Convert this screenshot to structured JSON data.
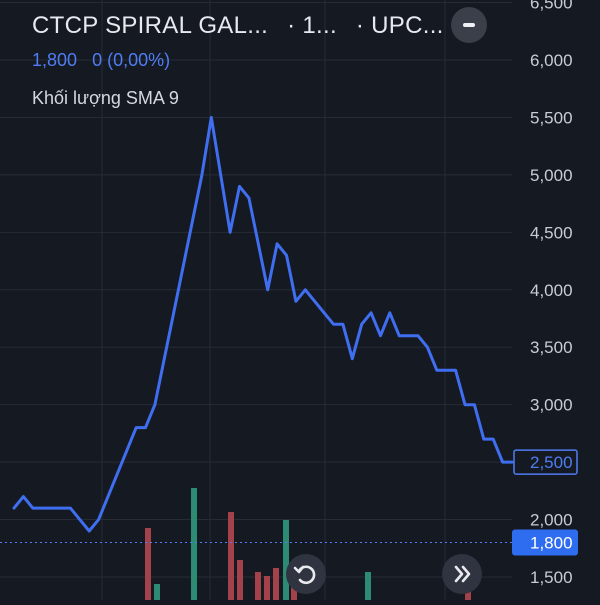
{
  "header": {
    "symbol_name": "CTCP SPIRAL GAL...",
    "interval": "· 1...",
    "exchange": "· UPC..."
  },
  "price": {
    "last": "1,800",
    "change": "0 (0,00%)"
  },
  "indicator": {
    "label": "Khối lượng SMA 9"
  },
  "controls": {
    "minimize_icon": "minus-icon",
    "reset_icon": "reset-icon",
    "scroll_latest_icon": "double-chevron-right-icon"
  },
  "colors": {
    "background": "#151922",
    "line": "#3f6ff0",
    "accent": "#4f7df3",
    "volume_up": "#2e8b73",
    "volume_down": "#a4424c",
    "grid": "#262b36"
  },
  "chart_data": {
    "type": "line",
    "series": [
      {
        "values": [
          2100,
          2200,
          2100,
          2100,
          2100,
          2100,
          2100,
          2000,
          1900,
          2000,
          2200,
          2400,
          2600,
          2800,
          2800,
          3000,
          3400,
          3800,
          4200,
          4600,
          5000,
          5500,
          5000,
          4500,
          4900,
          4800,
          4400,
          4000,
          4400,
          4300,
          3900,
          4000,
          3900,
          3800,
          3700,
          3700,
          3400,
          3700,
          3800,
          3600,
          3800,
          3600,
          3600,
          3600,
          3500,
          3300,
          3300,
          3300,
          3000,
          3000,
          2700,
          2700,
          2500,
          2500
        ]
      }
    ],
    "y_ticks": [
      "6,500",
      "6,000",
      "5,500",
      "5,000",
      "4,500",
      "4,000",
      "3,500",
      "3,000",
      "2,500",
      "2,000",
      "1,500"
    ],
    "ylim": [
      1400,
      6600
    ],
    "last_value_label": "2,500",
    "current_price_label": "1,800",
    "current_price": 1800,
    "volume": [
      {
        "value": 0.9,
        "up": false
      },
      {
        "value": 0.2,
        "up": true
      },
      {
        "value": 1.4,
        "up": true
      },
      {
        "value": 1.1,
        "up": false
      },
      {
        "value": 0.5,
        "up": false
      },
      {
        "value": 0.35,
        "up": false
      },
      {
        "value": 0.3,
        "up": false
      },
      {
        "value": 0.4,
        "up": false
      },
      {
        "value": 1.0,
        "up": true
      },
      {
        "value": 0.25,
        "up": false
      },
      {
        "value": 0.35,
        "up": true
      },
      {
        "value": 0.5,
        "up": false
      }
    ],
    "grid": true
  }
}
